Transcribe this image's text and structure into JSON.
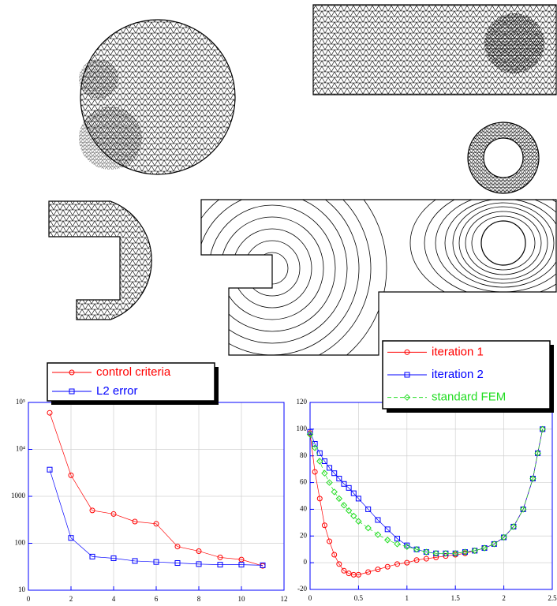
{
  "chart_data": [
    {
      "type": "line",
      "log_y": true,
      "grid": true,
      "axis_color": "#0000ff",
      "x": [
        1,
        2,
        3,
        4,
        5,
        6,
        7,
        8,
        9,
        10,
        11
      ],
      "xlim": [
        0,
        12
      ],
      "xticks": [
        0,
        2,
        4,
        6,
        8,
        10,
        12
      ],
      "ylim": [
        10,
        100000
      ],
      "yticks": [
        10,
        100,
        1000,
        {
          "value": 10000,
          "label": "10⁴"
        },
        {
          "value": 100000,
          "label": "10⁵"
        }
      ],
      "series": [
        {
          "name": "control criteria",
          "color": "#ff0000",
          "marker": "circle",
          "dashed": false,
          "values": [
            60000,
            2800,
            500,
            420,
            290,
            260,
            85,
            68,
            50,
            45,
            33
          ]
        },
        {
          "name": "L2 error",
          "color": "#0000ff",
          "marker": "square",
          "dashed": false,
          "values": [
            3700,
            130,
            52,
            48,
            42,
            40,
            38,
            36,
            35,
            35,
            34
          ]
        }
      ]
    },
    {
      "type": "line",
      "log_y": false,
      "grid": true,
      "axis_color": "#0000ff",
      "x": [
        0,
        0.05,
        0.1,
        0.15,
        0.2,
        0.25,
        0.3,
        0.35,
        0.4,
        0.45,
        0.5,
        0.6,
        0.7,
        0.8,
        0.9,
        1.0,
        1.1,
        1.2,
        1.3,
        1.4,
        1.5,
        1.6,
        1.7,
        1.8,
        1.9,
        2.0,
        2.1,
        2.2,
        2.3,
        2.35,
        2.4
      ],
      "xlim": [
        0,
        2.5
      ],
      "xticks": [
        0,
        0.5,
        1,
        1.5,
        2,
        2.5
      ],
      "ylim": [
        -20,
        120
      ],
      "yticks": [
        -20,
        0,
        20,
        40,
        60,
        80,
        100,
        120
      ],
      "series": [
        {
          "name": "iteration 1",
          "color": "#ff0000",
          "marker": "circle",
          "dashed": false,
          "values": [
            97,
            68,
            48,
            28,
            16,
            6,
            -1,
            -6,
            -8,
            -9,
            -9,
            -7,
            -5,
            -3,
            -1,
            0,
            2,
            3,
            4,
            5,
            6,
            7,
            9,
            11,
            14,
            19,
            27,
            40,
            63,
            82,
            100
          ]
        },
        {
          "name": "iteration 2",
          "color": "#0000ff",
          "marker": "square",
          "dashed": false,
          "values": [
            98,
            89,
            82,
            76,
            71,
            67,
            63,
            59,
            56,
            52,
            48,
            40,
            32,
            25,
            18,
            13,
            10,
            8,
            7,
            7,
            7,
            8,
            9,
            11,
            14,
            19,
            27,
            40,
            63,
            82,
            100
          ]
        },
        {
          "name": "standard FEM",
          "color": "#22dd22",
          "marker": "diamond",
          "dashed": true,
          "values": [
            96,
            86,
            76,
            67,
            60,
            53,
            48,
            43,
            39,
            35,
            31,
            26,
            21,
            17,
            14,
            12,
            10,
            8,
            7,
            7,
            7,
            8,
            9,
            11,
            14,
            19,
            27,
            40,
            63,
            82,
            100
          ]
        }
      ]
    }
  ]
}
